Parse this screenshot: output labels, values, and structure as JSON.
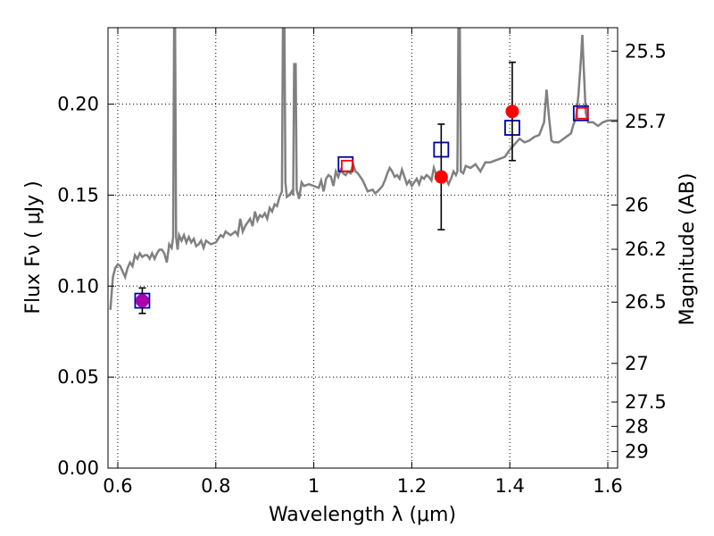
{
  "chart_data": {
    "type": "line",
    "xlabel": "Wavelength  λ (μm)",
    "ylabel": "Flux  Fν  ( μJy )",
    "ylabel_right": "Magnitude (AB)",
    "xlim": [
      0.58,
      1.62
    ],
    "ylim": [
      0.0,
      0.242
    ],
    "grid": true,
    "x_ticks": [
      0.6,
      0.8,
      1.0,
      1.2,
      1.4,
      1.6
    ],
    "x_tick_labels": [
      "0.6",
      "0.8",
      "1",
      "1.2",
      "1.4",
      "1.6"
    ],
    "y_ticks": [
      0.0,
      0.05,
      0.1,
      0.15,
      0.2
    ],
    "y_tick_labels": [
      "0.00",
      "0.05",
      "0.10",
      "0.15",
      "0.20"
    ],
    "right_ticks": [
      {
        "label": "25.5",
        "mag": 25.5
      },
      {
        "label": "25.7",
        "mag": 25.7
      },
      {
        "label": "26",
        "mag": 26.0
      },
      {
        "label": "26.2",
        "mag": 26.2
      },
      {
        "label": "26.5",
        "mag": 26.5
      },
      {
        "label": "27",
        "mag": 27.0
      },
      {
        "label": "27.5",
        "mag": 27.5
      },
      {
        "label": "28",
        "mag": 28.0
      },
      {
        "label": "29",
        "mag": 29.0
      }
    ],
    "series": [
      {
        "kind": "spectrum",
        "color": "#808080",
        "points": [
          [
            0.585,
            0.087
          ],
          [
            0.59,
            0.105
          ],
          [
            0.595,
            0.11
          ],
          [
            0.6,
            0.112
          ],
          [
            0.605,
            0.111
          ],
          [
            0.61,
            0.108
          ],
          [
            0.615,
            0.105
          ],
          [
            0.62,
            0.11
          ],
          [
            0.625,
            0.113
          ],
          [
            0.63,
            0.111
          ],
          [
            0.635,
            0.117
          ],
          [
            0.64,
            0.115
          ],
          [
            0.645,
            0.118
          ],
          [
            0.65,
            0.116
          ],
          [
            0.655,
            0.117
          ],
          [
            0.66,
            0.117
          ],
          [
            0.665,
            0.115
          ],
          [
            0.67,
            0.118
          ],
          [
            0.675,
            0.115
          ],
          [
            0.68,
            0.118
          ],
          [
            0.685,
            0.12
          ],
          [
            0.69,
            0.12
          ],
          [
            0.695,
            0.118
          ],
          [
            0.7,
            0.113
          ],
          [
            0.705,
            0.123
          ],
          [
            0.71,
            0.121
          ],
          [
            0.713,
            0.127
          ],
          [
            0.715,
            0.242
          ],
          [
            0.717,
            0.242
          ],
          [
            0.719,
            0.127
          ],
          [
            0.722,
            0.12
          ],
          [
            0.725,
            0.128
          ],
          [
            0.73,
            0.125
          ],
          [
            0.735,
            0.128
          ],
          [
            0.74,
            0.124
          ],
          [
            0.745,
            0.127
          ],
          [
            0.75,
            0.124
          ],
          [
            0.755,
            0.126
          ],
          [
            0.76,
            0.122
          ],
          [
            0.765,
            0.123
          ],
          [
            0.77,
            0.125
          ],
          [
            0.775,
            0.121
          ],
          [
            0.78,
            0.125
          ],
          [
            0.79,
            0.123
          ],
          [
            0.8,
            0.124
          ],
          [
            0.81,
            0.128
          ],
          [
            0.815,
            0.127
          ],
          [
            0.82,
            0.13
          ],
          [
            0.825,
            0.129
          ],
          [
            0.83,
            0.128
          ],
          [
            0.84,
            0.13
          ],
          [
            0.845,
            0.128
          ],
          [
            0.85,
            0.137
          ],
          [
            0.855,
            0.13
          ],
          [
            0.86,
            0.133
          ],
          [
            0.865,
            0.135
          ],
          [
            0.87,
            0.137
          ],
          [
            0.875,
            0.133
          ],
          [
            0.88,
            0.141
          ],
          [
            0.885,
            0.136
          ],
          [
            0.89,
            0.139
          ],
          [
            0.895,
            0.138
          ],
          [
            0.9,
            0.14
          ],
          [
            0.905,
            0.137
          ],
          [
            0.91,
            0.143
          ],
          [
            0.915,
            0.141
          ],
          [
            0.92,
            0.145
          ],
          [
            0.925,
            0.144
          ],
          [
            0.93,
            0.149
          ],
          [
            0.935,
            0.152
          ],
          [
            0.937,
            0.242
          ],
          [
            0.94,
            0.242
          ],
          [
            0.942,
            0.157
          ],
          [
            0.945,
            0.149
          ],
          [
            0.95,
            0.15
          ],
          [
            0.955,
            0.152
          ],
          [
            0.958,
            0.15
          ],
          [
            0.96,
            0.222
          ],
          [
            0.963,
            0.222
          ],
          [
            0.965,
            0.153
          ],
          [
            0.97,
            0.148
          ],
          [
            0.975,
            0.157
          ],
          [
            0.98,
            0.155
          ],
          [
            0.99,
            0.156
          ],
          [
            1.0,
            0.155
          ],
          [
            1.01,
            0.154
          ],
          [
            1.015,
            0.158
          ],
          [
            1.02,
            0.152
          ],
          [
            1.025,
            0.159
          ],
          [
            1.03,
            0.161
          ],
          [
            1.035,
            0.16
          ],
          [
            1.04,
            0.155
          ],
          [
            1.045,
            0.163
          ],
          [
            1.05,
            0.16
          ],
          [
            1.055,
            0.164
          ],
          [
            1.06,
            0.162
          ],
          [
            1.065,
            0.161
          ],
          [
            1.07,
            0.163
          ],
          [
            1.075,
            0.162
          ],
          [
            1.08,
            0.167
          ],
          [
            1.085,
            0.163
          ],
          [
            1.09,
            0.162
          ],
          [
            1.1,
            0.158
          ],
          [
            1.11,
            0.152
          ],
          [
            1.12,
            0.153
          ],
          [
            1.125,
            0.151
          ],
          [
            1.13,
            0.152
          ],
          [
            1.14,
            0.155
          ],
          [
            1.145,
            0.158
          ],
          [
            1.15,
            0.162
          ],
          [
            1.155,
            0.165
          ],
          [
            1.16,
            0.163
          ],
          [
            1.165,
            0.16
          ],
          [
            1.17,
            0.161
          ],
          [
            1.175,
            0.159
          ],
          [
            1.18,
            0.164
          ],
          [
            1.185,
            0.16
          ],
          [
            1.19,
            0.156
          ],
          [
            1.195,
            0.158
          ],
          [
            1.2,
            0.155
          ],
          [
            1.205,
            0.157
          ],
          [
            1.21,
            0.159
          ],
          [
            1.215,
            0.156
          ],
          [
            1.22,
            0.16
          ],
          [
            1.225,
            0.159
          ],
          [
            1.23,
            0.161
          ],
          [
            1.235,
            0.16
          ],
          [
            1.24,
            0.158
          ],
          [
            1.245,
            0.165
          ],
          [
            1.25,
            0.161
          ],
          [
            1.255,
            0.158
          ],
          [
            1.26,
            0.16
          ],
          [
            1.265,
            0.157
          ],
          [
            1.27,
            0.159
          ],
          [
            1.275,
            0.156
          ],
          [
            1.28,
            0.159
          ],
          [
            1.285,
            0.163
          ],
          [
            1.29,
            0.161
          ],
          [
            1.293,
            0.163
          ],
          [
            1.295,
            0.242
          ],
          [
            1.298,
            0.242
          ],
          [
            1.3,
            0.163
          ],
          [
            1.305,
            0.162
          ],
          [
            1.31,
            0.166
          ],
          [
            1.32,
            0.165
          ],
          [
            1.33,
            0.167
          ],
          [
            1.34,
            0.163
          ],
          [
            1.35,
            0.168
          ],
          [
            1.36,
            0.168
          ],
          [
            1.37,
            0.169
          ],
          [
            1.38,
            0.17
          ],
          [
            1.39,
            0.171
          ],
          [
            1.4,
            0.175
          ],
          [
            1.41,
            0.178
          ],
          [
            1.42,
            0.181
          ],
          [
            1.43,
            0.179
          ],
          [
            1.44,
            0.18
          ],
          [
            1.45,
            0.182
          ],
          [
            1.46,
            0.183
          ],
          [
            1.47,
            0.19
          ],
          [
            1.475,
            0.208
          ],
          [
            1.48,
            0.193
          ],
          [
            1.485,
            0.18
          ],
          [
            1.49,
            0.179
          ],
          [
            1.5,
            0.179
          ],
          [
            1.51,
            0.181
          ],
          [
            1.52,
            0.183
          ],
          [
            1.525,
            0.184
          ],
          [
            1.53,
            0.189
          ],
          [
            1.535,
            0.192
          ],
          [
            1.54,
            0.205
          ],
          [
            1.545,
            0.224
          ],
          [
            1.548,
            0.238
          ],
          [
            1.55,
            0.225
          ],
          [
            1.555,
            0.195
          ],
          [
            1.56,
            0.19
          ],
          [
            1.57,
            0.19
          ],
          [
            1.58,
            0.188
          ],
          [
            1.59,
            0.19
          ],
          [
            1.6,
            0.191
          ],
          [
            1.61,
            0.191
          ],
          [
            1.62,
            0.191
          ]
        ]
      },
      {
        "kind": "open-square",
        "color": "#0000aa",
        "x": [
          0.65,
          1.065,
          1.26,
          1.405,
          1.545
        ],
        "y": [
          0.092,
          0.167,
          0.175,
          0.187,
          0.195
        ]
      },
      {
        "kind": "small-open-square",
        "color": "#ff0000",
        "x": [
          1.068,
          1.548
        ],
        "y": [
          0.166,
          0.195
        ]
      },
      {
        "kind": "filled-circle",
        "color": "#ff0000",
        "x": [
          1.26,
          1.405
        ],
        "y": [
          0.16,
          0.196
        ],
        "yerr": [
          0.029,
          0.027
        ]
      },
      {
        "kind": "filled-circle",
        "color": "#aa00aa",
        "x": [
          0.65
        ],
        "y": [
          0.092
        ],
        "yerr": [
          0.007
        ]
      }
    ]
  }
}
